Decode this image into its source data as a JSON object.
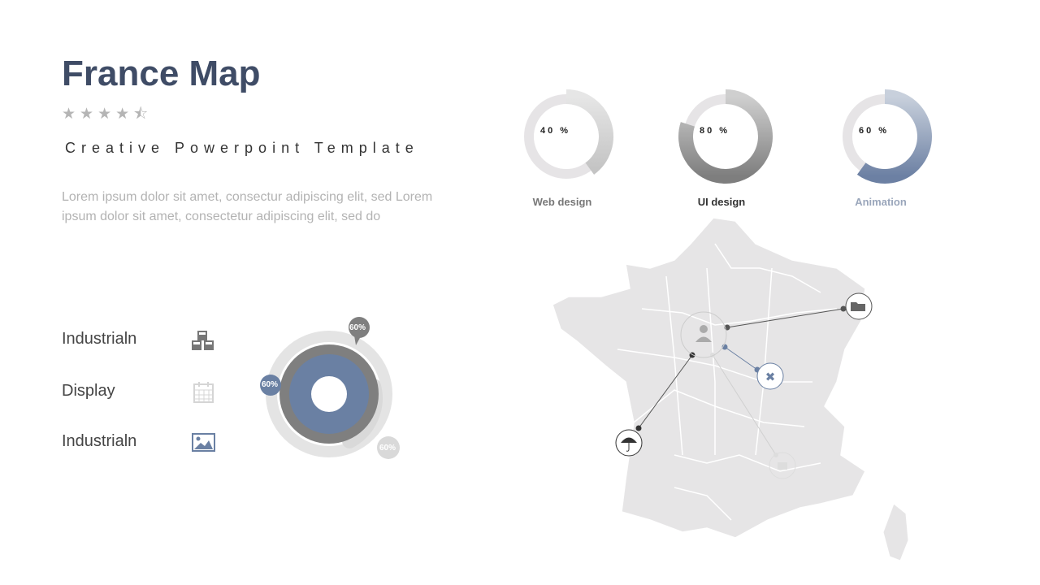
{
  "title": "France Map",
  "rating": {
    "value": 4.5,
    "max": 5,
    "stars": "★★★★⯪"
  },
  "subtitle": "Creative Powerpoint Template",
  "body": "Lorem ipsum dolor sit amet, consectur adipiscing elit, sed Lorem ipsum dolor sit amet, consectetur adipiscing elit, sed do",
  "donuts": [
    {
      "label": "Web design",
      "value": "40 %",
      "percent": 40,
      "color": "#c4c4c4",
      "label_color": "#777"
    },
    {
      "label": "UI design",
      "value": "80 %",
      "percent": 80,
      "color": "#888888",
      "label_color": "#333"
    },
    {
      "label": "Animation",
      "value": "60 %",
      "percent": 60,
      "color": "#6c80a3",
      "label_color": "#9aa6bb"
    }
  ],
  "legend": [
    {
      "label": "Industrialn",
      "icon": "cubes-icon"
    },
    {
      "label": "Display",
      "icon": "calendar-icon"
    },
    {
      "label": "Industrialn",
      "icon": "image-icon"
    }
  ],
  "rings": [
    {
      "value": "60%",
      "color": "#d9d9d9"
    },
    {
      "value": "60%",
      "color": "#7f7f7f"
    },
    {
      "value": "60%",
      "color": "#6a80a3"
    }
  ],
  "map_icons": [
    "user-icon",
    "folder-icon",
    "joomla-icon",
    "umbrella-icon",
    "briefcase-icon"
  ]
}
